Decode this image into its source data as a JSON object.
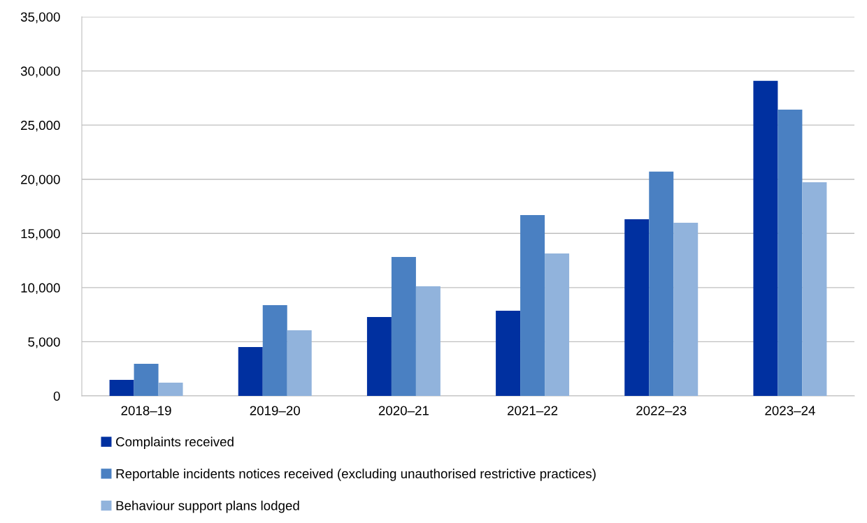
{
  "chart_data": {
    "type": "bar",
    "categories": [
      "2018–19",
      "2019–20",
      "2020–21",
      "2021–22",
      "2022–23",
      "2023–24"
    ],
    "series": [
      {
        "name": "Complaints received",
        "color": "#0030a0",
        "values": [
          1480,
          4510,
          7290,
          7870,
          16310,
          29080
        ]
      },
      {
        "name": "Reportable incidents notices received (excluding unauthorised restrictive practices)",
        "color": "#4a80c2",
        "values": [
          2970,
          8380,
          12830,
          16700,
          20700,
          26430
        ]
      },
      {
        "name": "Behaviour support plans lodged",
        "color": "#91b3dc",
        "values": [
          1220,
          6060,
          10120,
          13150,
          15990,
          19730
        ]
      }
    ],
    "ylim": [
      0,
      35000
    ],
    "yticks": [
      {
        "value": 0,
        "label": "0"
      },
      {
        "value": 5000,
        "label": "5,000"
      },
      {
        "value": 10000,
        "label": "10,000"
      },
      {
        "value": 15000,
        "label": "15,000"
      },
      {
        "value": 20000,
        "label": "20,000"
      },
      {
        "value": 25000,
        "label": "25,000"
      },
      {
        "value": 30000,
        "label": "30,000"
      },
      {
        "value": 35000,
        "label": "35,000"
      }
    ],
    "grid": "y",
    "legend": "bottom"
  }
}
